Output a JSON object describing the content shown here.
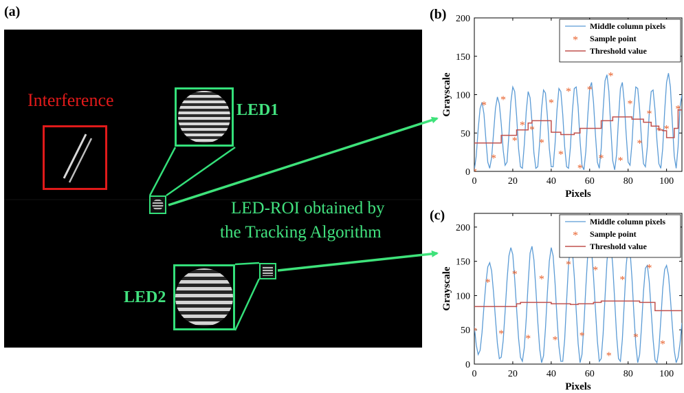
{
  "panels": {
    "a": "(a)",
    "b": "(b)",
    "c": "(c)"
  },
  "photo": {
    "interference_label": "Interference",
    "led1_label": "LED1",
    "led2_label": "LED2",
    "roi_caption_line1": "LED-ROI obtained by",
    "roi_caption_line2": "the Tracking Algorithm",
    "colors": {
      "interference": "#e01a1a",
      "led_box": "#34e07a",
      "led_text": "#42e27f",
      "background": "#000000"
    }
  },
  "chart_data": [
    {
      "panel": "(b)",
      "type": "line",
      "xlabel": "Pixels",
      "ylabel": "Grayscale",
      "xlim": [
        0,
        108
      ],
      "ylim": [
        0,
        200
      ],
      "xticks": [
        0,
        20,
        40,
        60,
        80,
        100
      ],
      "yticks": [
        0,
        50,
        100,
        150,
        200
      ],
      "legend_position": "top-right",
      "colors": {
        "curve": "#5b9bd5",
        "sample": "#e8612c",
        "threshold": "#c0504d"
      },
      "series": [
        {
          "name": "Middle column pixels",
          "kind": "line",
          "x": [
            0,
            1,
            2,
            3,
            4,
            5,
            6,
            7,
            8,
            9,
            10,
            11,
            12,
            13,
            14,
            15,
            16,
            17,
            18,
            19,
            20,
            21,
            22,
            23,
            24,
            25,
            26,
            27,
            28,
            29,
            30,
            31,
            32,
            33,
            34,
            35,
            36,
            37,
            38,
            39,
            40,
            41,
            42,
            43,
            44,
            45,
            46,
            47,
            48,
            49,
            50,
            51,
            52,
            53,
            54,
            55,
            56,
            57,
            58,
            59,
            60,
            61,
            62,
            63,
            64,
            65,
            66,
            67,
            68,
            69,
            70,
            71,
            72,
            73,
            74,
            75,
            76,
            77,
            78,
            79,
            80,
            81,
            82,
            83,
            84,
            85,
            86,
            87,
            88,
            89,
            90,
            91,
            92,
            93,
            94,
            95,
            96,
            97,
            98,
            99,
            100,
            101,
            102,
            103,
            104,
            105,
            106,
            107,
            108
          ],
          "values": [
            2,
            20,
            55,
            82,
            90,
            75,
            42,
            12,
            4,
            18,
            50,
            82,
            97,
            88,
            62,
            28,
            8,
            12,
            48,
            90,
            110,
            104,
            72,
            30,
            6,
            4,
            35,
            78,
            104,
            96,
            64,
            24,
            4,
            6,
            38,
            82,
            106,
            102,
            72,
            30,
            6,
            6,
            36,
            80,
            108,
            104,
            74,
            32,
            6,
            4,
            32,
            78,
            108,
            110,
            84,
            40,
            8,
            2,
            26,
            72,
            108,
            116,
            90,
            48,
            12,
            4,
            30,
            80,
            118,
            126,
            104,
            56,
            14,
            2,
            22,
            68,
            108,
            116,
            90,
            48,
            12,
            8,
            36,
            82,
            110,
            108,
            80,
            40,
            10,
            6,
            32,
            76,
            104,
            106,
            80,
            40,
            10,
            4,
            30,
            78,
            116,
            128,
            110,
            64,
            20,
            4,
            32,
            84,
            100
          ]
        },
        {
          "name": "Sample point",
          "kind": "scatter",
          "x": [
            0,
            5,
            10,
            15,
            21,
            25,
            30,
            35,
            40,
            45,
            49,
            55,
            60,
            66,
            71,
            76,
            81,
            86,
            91,
            96,
            100,
            106
          ],
          "values": [
            0,
            87,
            18,
            94,
            41,
            61,
            55,
            38,
            90,
            23,
            105,
            5,
            107,
            18,
            125,
            15,
            89,
            37,
            76,
            54,
            56,
            82
          ]
        },
        {
          "name": "Threshold value",
          "kind": "step",
          "x": [
            0,
            12,
            14,
            20,
            22,
            25,
            28,
            30,
            40,
            45,
            52,
            55,
            60,
            66,
            70,
            72,
            80,
            82,
            88,
            92,
            96,
            98,
            100,
            104,
            106,
            108
          ],
          "values": [
            37,
            37,
            47,
            47,
            54,
            54,
            63,
            66,
            51,
            48,
            50,
            56,
            56,
            66,
            66,
            71,
            71,
            68,
            64,
            59,
            54,
            53,
            44,
            56,
            80,
            80
          ]
        }
      ]
    },
    {
      "panel": "(c)",
      "type": "line",
      "xlabel": "Pixels",
      "ylabel": "Grayscale",
      "xlim": [
        0,
        108
      ],
      "ylim": [
        0,
        220
      ],
      "xticks": [
        0,
        20,
        40,
        60,
        80,
        100
      ],
      "yticks": [
        0,
        50,
        100,
        150,
        200
      ],
      "legend_position": "top-right",
      "colors": {
        "curve": "#5b9bd5",
        "sample": "#e8612c",
        "threshold": "#c0504d"
      },
      "series": [
        {
          "name": "Middle column pixels",
          "kind": "line",
          "x": [
            0,
            1,
            2,
            3,
            4,
            5,
            6,
            7,
            8,
            9,
            10,
            11,
            12,
            13,
            14,
            15,
            16,
            17,
            18,
            19,
            20,
            21,
            22,
            23,
            24,
            25,
            26,
            27,
            28,
            29,
            30,
            31,
            32,
            33,
            34,
            35,
            36,
            37,
            38,
            39,
            40,
            41,
            42,
            43,
            44,
            45,
            46,
            47,
            48,
            49,
            50,
            51,
            52,
            53,
            54,
            55,
            56,
            57,
            58,
            59,
            60,
            61,
            62,
            63,
            64,
            65,
            66,
            67,
            68,
            69,
            70,
            71,
            72,
            73,
            74,
            75,
            76,
            77,
            78,
            79,
            80,
            81,
            82,
            83,
            84,
            85,
            86,
            87,
            88,
            89,
            90,
            91,
            92,
            93,
            94,
            95,
            96,
            97,
            98,
            99,
            100,
            101,
            102,
            103,
            104,
            105,
            106,
            107,
            108
          ],
          "values": [
            55,
            28,
            14,
            20,
            46,
            84,
            118,
            142,
            148,
            136,
            104,
            66,
            30,
            8,
            10,
            34,
            76,
            122,
            158,
            170,
            160,
            124,
            80,
            38,
            10,
            4,
            24,
            66,
            118,
            162,
            172,
            152,
            110,
            62,
            22,
            2,
            12,
            52,
            104,
            150,
            170,
            158,
            118,
            68,
            26,
            4,
            4,
            36,
            92,
            146,
            172,
            166,
            128,
            78,
            30,
            2,
            14,
            58,
            112,
            160,
            178,
            166,
            128,
            80,
            34,
            4,
            8,
            44,
            98,
            150,
            178,
            176,
            144,
            94,
            42,
            8,
            4,
            36,
            90,
            144,
            172,
            166,
            126,
            74,
            28,
            2,
            14,
            56,
            106,
            140,
            144,
            120,
            78,
            36,
            6,
            2,
            22,
            64,
            110,
            138,
            144,
            130,
            96,
            56,
            20,
            2,
            10,
            30,
            60
          ]
        },
        {
          "name": "Sample point",
          "kind": "scatter",
          "x": [
            0,
            7,
            14,
            21,
            28,
            35,
            42,
            49,
            56,
            63,
            70,
            77,
            84,
            91,
            98
          ],
          "values": [
            49,
            120,
            45,
            132,
            38,
            125,
            36,
            146,
            42,
            138,
            13,
            124,
            40,
            141,
            30
          ]
        },
        {
          "name": "Threshold value",
          "kind": "step",
          "x": [
            0,
            18,
            22,
            24,
            36,
            40,
            50,
            54,
            62,
            66,
            82,
            86,
            92,
            94,
            108
          ],
          "values": [
            84,
            84,
            88,
            90,
            90,
            88,
            87,
            88,
            90,
            92,
            92,
            90,
            90,
            78,
            78
          ]
        }
      ]
    }
  ]
}
